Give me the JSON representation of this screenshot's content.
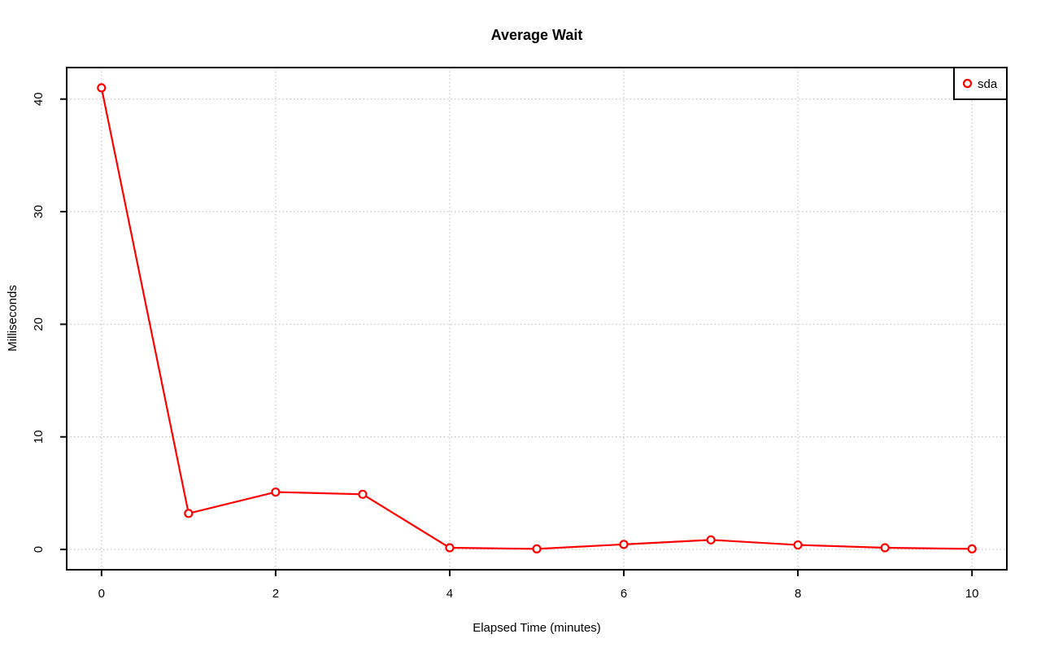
{
  "page": {
    "background": "#ffffff"
  },
  "chart_data": {
    "type": "line",
    "title": "Average Wait",
    "xlabel": "Elapsed Time (minutes)",
    "ylabel": "Milliseconds",
    "x": [
      0,
      1,
      2,
      3,
      4,
      5,
      6,
      7,
      8,
      9,
      10
    ],
    "series": [
      {
        "name": "sda",
        "color": "#ff0000",
        "marker": "open-circle",
        "values": [
          41,
          3.2,
          5.1,
          4.9,
          0.15,
          0.05,
          0.45,
          0.85,
          0.4,
          0.15,
          0.05
        ]
      }
    ],
    "xticks": [
      0,
      2,
      4,
      6,
      8,
      10
    ],
    "yticks": [
      0,
      10,
      20,
      30,
      40
    ],
    "xlim": [
      -0.4,
      10.4
    ],
    "ylim": [
      -1.8,
      42.8
    ],
    "grid": true,
    "grid_color": "#cccccc",
    "grid_style": "dotted",
    "axis_color": "#000000",
    "background": "#ffffff",
    "legend": {
      "position": "top-right",
      "entries": [
        "sda"
      ]
    }
  }
}
